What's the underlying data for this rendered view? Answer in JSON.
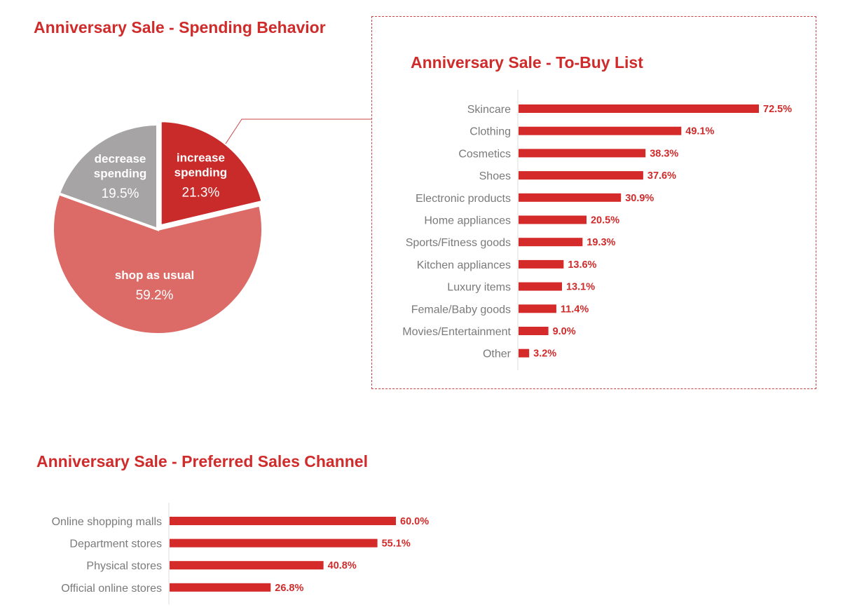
{
  "titles": {
    "pie": "Anniversary Sale - Spending Behavior",
    "tobuy": "Anniversary Sale - To-Buy List",
    "channel": "Anniversary Sale - Preferred Sales Channel"
  },
  "colors": {
    "accent": "#d02b2b",
    "bar": "#d42a2a",
    "pie_increase": "#c92a2a",
    "pie_usual": "#dc6b67",
    "pie_decrease": "#a6a4a5",
    "category_text": "#7a7a7a"
  },
  "chart_data": [
    {
      "id": "spending",
      "type": "pie",
      "title": "Anniversary Sale - Spending Behavior",
      "slices": [
        {
          "label_lines": [
            "increase",
            "spending"
          ],
          "value": 21.3,
          "pct_text": "21.3%",
          "color": "#c92a2a",
          "exploded": true
        },
        {
          "label_lines": [
            "shop as usual"
          ],
          "value": 59.2,
          "pct_text": "59.2%",
          "color": "#dc6b67",
          "exploded": false
        },
        {
          "label_lines": [
            "decrease",
            "spending"
          ],
          "value": 19.5,
          "pct_text": "19.5%",
          "color": "#a6a4a5",
          "exploded": false
        }
      ]
    },
    {
      "id": "tobuy",
      "type": "bar",
      "orientation": "horizontal",
      "title": "Anniversary Sale - To-Buy List",
      "categories": [
        "Skincare",
        "Clothing",
        "Cosmetics",
        "Shoes",
        "Electronic products",
        "Home appliances",
        "Sports/Fitness goods",
        "Kitchen appliances",
        "Luxury items",
        "Female/Baby goods",
        "Movies/Entertainment",
        "Other"
      ],
      "values": [
        72.5,
        49.1,
        38.3,
        37.6,
        30.9,
        20.5,
        19.3,
        13.6,
        13.1,
        11.4,
        9.0,
        3.2
      ],
      "value_labels": [
        "72.5%",
        "49.1%",
        "38.3%",
        "37.6%",
        "30.9%",
        "20.5%",
        "19.3%",
        "13.6%",
        "13.1%",
        "11.4%",
        "9.0%",
        "3.2%"
      ]
    },
    {
      "id": "channel",
      "type": "bar",
      "orientation": "horizontal",
      "title": "Anniversary Sale - Preferred Sales Channel",
      "categories": [
        "Online shopping malls",
        "Department stores",
        "Physical stores",
        "Official online stores"
      ],
      "values": [
        60.0,
        55.1,
        40.8,
        26.8
      ],
      "value_labels": [
        "60.0%",
        "55.1%",
        "40.8%",
        "26.8%"
      ]
    }
  ]
}
